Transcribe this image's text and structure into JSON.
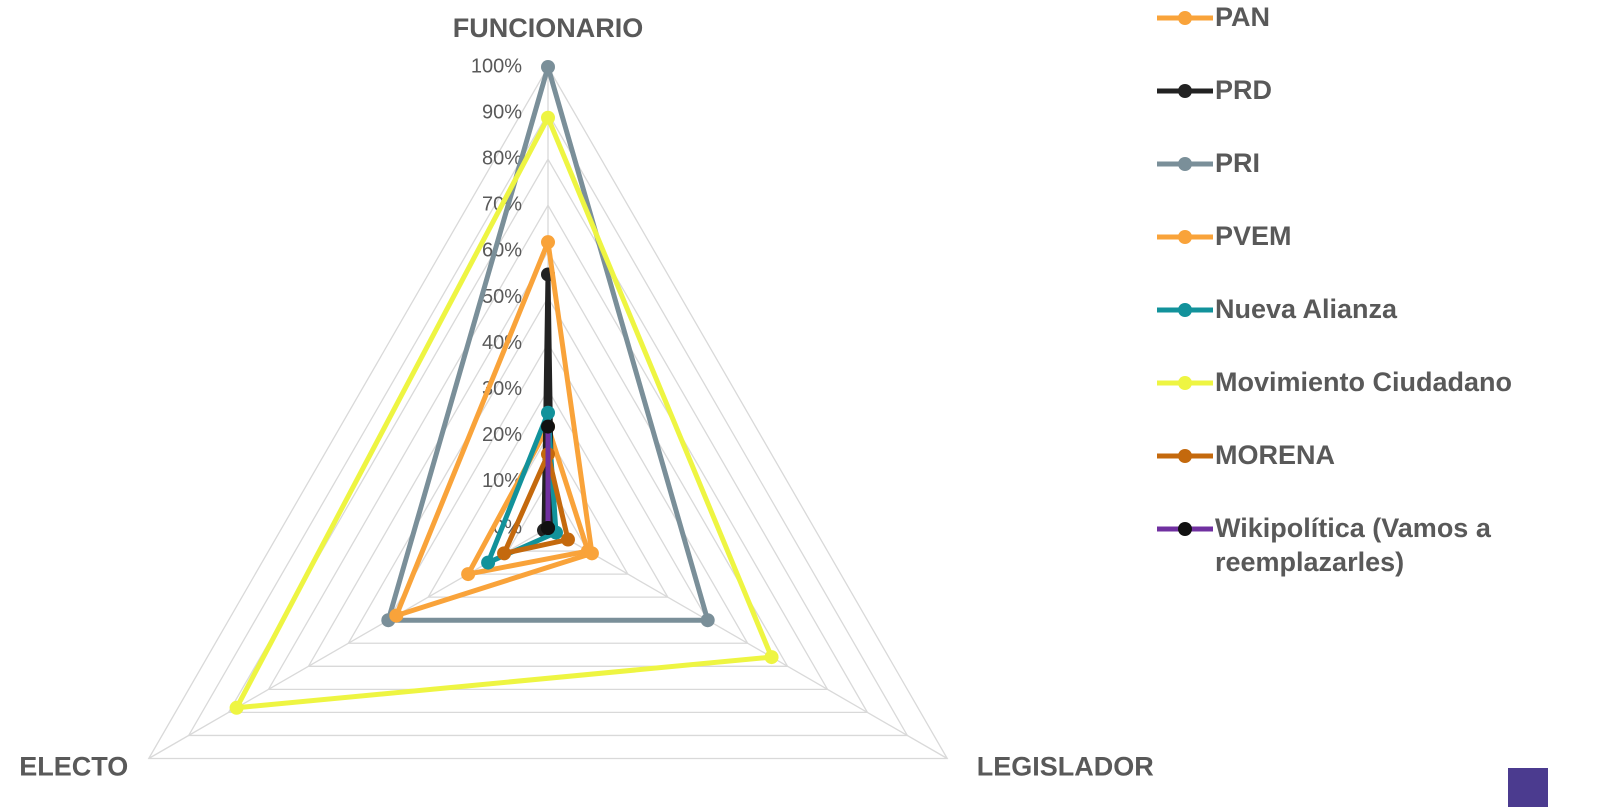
{
  "chart_data": {
    "type": "radar",
    "categories": [
      "FUNCIONARIO",
      "LEGISLADOR",
      "ELECTO"
    ],
    "ylim": [
      0,
      100
    ],
    "yticks": [
      {
        "value": 0,
        "label": "0%"
      },
      {
        "value": 10,
        "label": "10%"
      },
      {
        "value": 20,
        "label": "20%"
      },
      {
        "value": 30,
        "label": "30%"
      },
      {
        "value": 40,
        "label": "40%"
      },
      {
        "value": 50,
        "label": "50%"
      },
      {
        "value": 60,
        "label": "60%"
      },
      {
        "value": 70,
        "label": "70%"
      },
      {
        "value": 80,
        "label": "80%"
      },
      {
        "value": 90,
        "label": "90%"
      },
      {
        "value": 100,
        "label": "100%"
      }
    ],
    "grid": true,
    "legend": "right",
    "series": [
      {
        "name": "PAN",
        "color": "#f9a33a",
        "values": [
          22,
          10,
          20
        ]
      },
      {
        "name": "PRD",
        "color": "#222222",
        "values": [
          55,
          1,
          1
        ]
      },
      {
        "name": "PRI",
        "color": "#7a8f99",
        "values": [
          100,
          40,
          40
        ]
      },
      {
        "name": "PVEM",
        "color": "#f9a33a",
        "values": [
          62,
          11,
          38
        ]
      },
      {
        "name": "Nueva Alianza",
        "color": "#12929b",
        "values": [
          25,
          2,
          15
        ]
      },
      {
        "name": "Movimiento Ciudadano",
        "color": "#eef542",
        "values": [
          89,
          56,
          78
        ]
      },
      {
        "name": "MORENA",
        "color": "#c4690d",
        "values": [
          16,
          5,
          11
        ]
      },
      {
        "name": "Wikipolítica (Vamos a reemplazarles)",
        "color": "#7030a0",
        "marker_color": "#111111",
        "values": [
          22,
          0,
          0
        ]
      }
    ]
  }
}
